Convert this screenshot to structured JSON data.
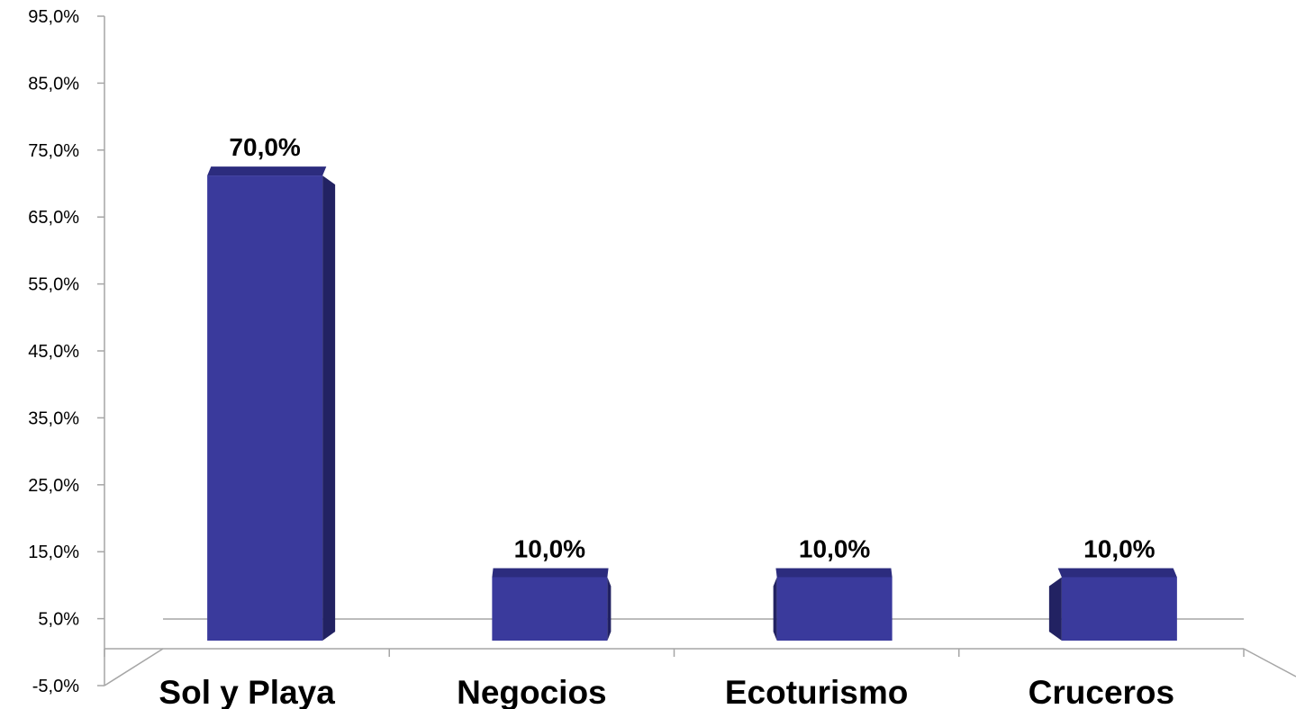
{
  "chart_data": {
    "type": "bar",
    "categories": [
      "Sol y Playa",
      "Negocios",
      "Ecoturismo",
      "Cruceros"
    ],
    "values": [
      70.0,
      10.0,
      10.0,
      10.0
    ],
    "data_labels": [
      "70,0%",
      "10,0%",
      "10,0%",
      "10,0%"
    ],
    "y_ticks": [
      "-5,0%",
      "5,0%",
      "15,0%",
      "25,0%",
      "35,0%",
      "45,0%",
      "55,0%",
      "65,0%",
      "75,0%",
      "85,0%",
      "95,0%"
    ],
    "ylim": [
      -5,
      95
    ],
    "title": "",
    "xlabel": "",
    "ylabel": "",
    "grid": false,
    "legend": "none",
    "style": "3d-column",
    "colors": {
      "bar_front": "#3a3a9c",
      "bar_side": "#222262",
      "bar_top": "#2c2c7e",
      "axis": "#a6a6a6",
      "text": "#000000"
    }
  }
}
